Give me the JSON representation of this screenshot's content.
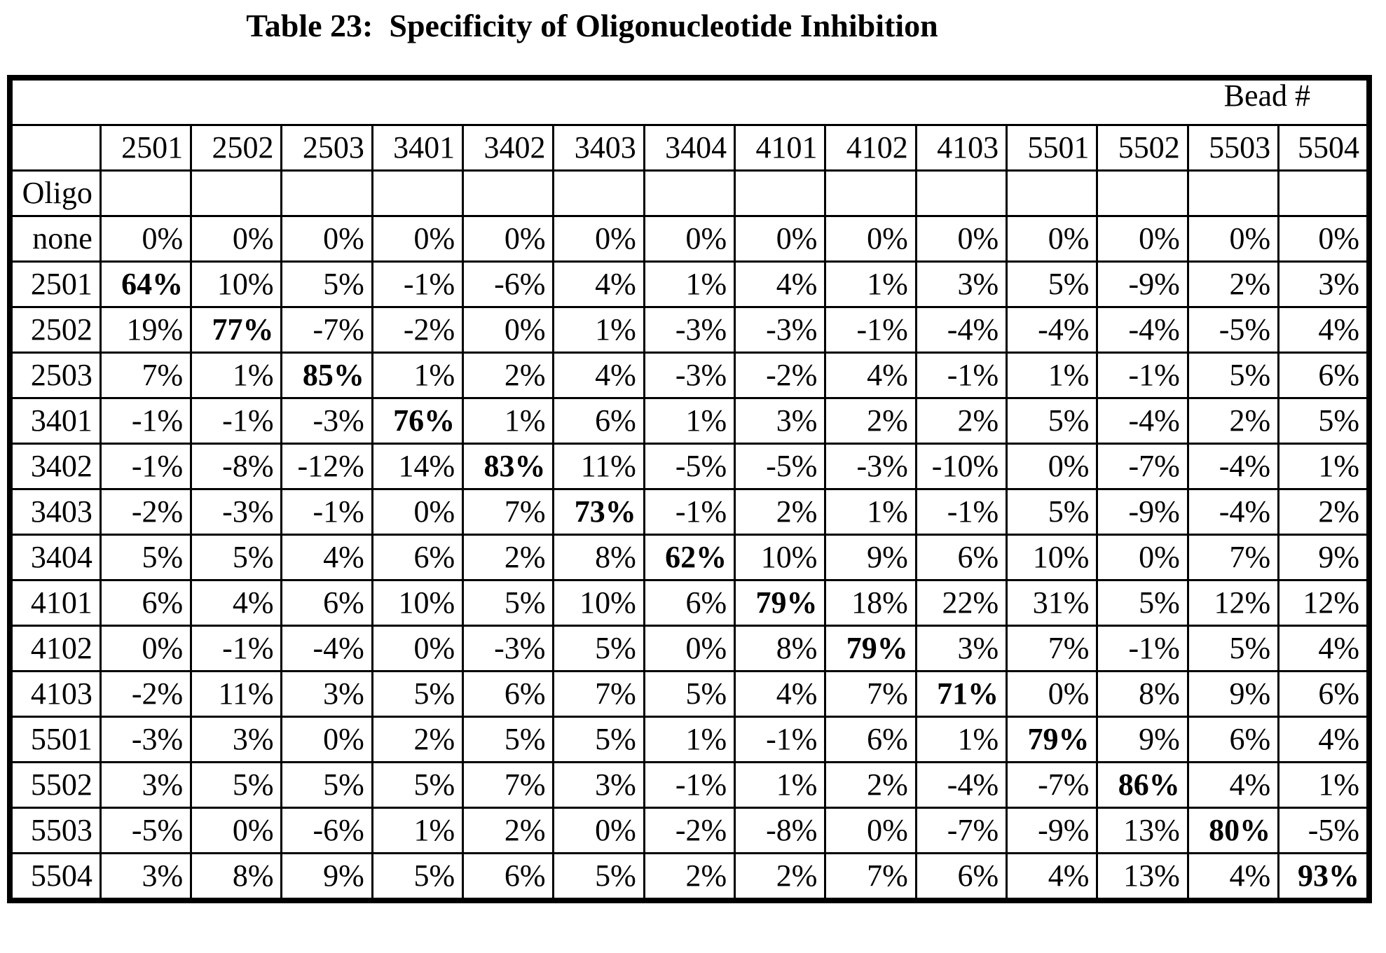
{
  "title": "Table 23:  Specificity of Oligonucleotide Inhibition",
  "table": {
    "group_header": "Bead #",
    "row_label_header": "Oligo",
    "columns": [
      "2501",
      "2502",
      "2503",
      "3401",
      "3402",
      "3403",
      "3404",
      "4101",
      "4102",
      "4103",
      "5501",
      "5502",
      "5503",
      "5504"
    ],
    "rows": [
      {
        "label": "none",
        "values": [
          "0%",
          "0%",
          "0%",
          "0%",
          "0%",
          "0%",
          "0%",
          "0%",
          "0%",
          "0%",
          "0%",
          "0%",
          "0%",
          "0%"
        ]
      },
      {
        "label": "2501",
        "values": [
          "64%",
          "10%",
          "5%",
          "-1%",
          "-6%",
          "4%",
          "1%",
          "4%",
          "1%",
          "3%",
          "5%",
          "-9%",
          "2%",
          "3%"
        ]
      },
      {
        "label": "2502",
        "values": [
          "19%",
          "77%",
          "-7%",
          "-2%",
          "0%",
          "1%",
          "-3%",
          "-3%",
          "-1%",
          "-4%",
          "-4%",
          "-4%",
          "-5%",
          "4%"
        ]
      },
      {
        "label": "2503",
        "values": [
          "7%",
          "1%",
          "85%",
          "1%",
          "2%",
          "4%",
          "-3%",
          "-2%",
          "4%",
          "-1%",
          "1%",
          "-1%",
          "5%",
          "6%"
        ]
      },
      {
        "label": "3401",
        "values": [
          "-1%",
          "-1%",
          "-3%",
          "76%",
          "1%",
          "6%",
          "1%",
          "3%",
          "2%",
          "2%",
          "5%",
          "-4%",
          "2%",
          "5%"
        ]
      },
      {
        "label": "3402",
        "values": [
          "-1%",
          "-8%",
          "-12%",
          "14%",
          "83%",
          "11%",
          "-5%",
          "-5%",
          "-3%",
          "-10%",
          "0%",
          "-7%",
          "-4%",
          "1%"
        ]
      },
      {
        "label": "3403",
        "values": [
          "-2%",
          "-3%",
          "-1%",
          "0%",
          "7%",
          "73%",
          "-1%",
          "2%",
          "1%",
          "-1%",
          "5%",
          "-9%",
          "-4%",
          "2%"
        ]
      },
      {
        "label": "3404",
        "values": [
          "5%",
          "5%",
          "4%",
          "6%",
          "2%",
          "8%",
          "62%",
          "10%",
          "9%",
          "6%",
          "10%",
          "0%",
          "7%",
          "9%"
        ]
      },
      {
        "label": "4101",
        "values": [
          "6%",
          "4%",
          "6%",
          "10%",
          "5%",
          "10%",
          "6%",
          "79%",
          "18%",
          "22%",
          "31%",
          "5%",
          "12%",
          "12%"
        ]
      },
      {
        "label": "4102",
        "values": [
          "0%",
          "-1%",
          "-4%",
          "0%",
          "-3%",
          "5%",
          "0%",
          "8%",
          "79%",
          "3%",
          "7%",
          "-1%",
          "5%",
          "4%"
        ]
      },
      {
        "label": "4103",
        "values": [
          "-2%",
          "11%",
          "3%",
          "5%",
          "6%",
          "7%",
          "5%",
          "4%",
          "7%",
          "71%",
          "0%",
          "8%",
          "9%",
          "6%"
        ]
      },
      {
        "label": "5501",
        "values": [
          "-3%",
          "3%",
          "0%",
          "2%",
          "5%",
          "5%",
          "1%",
          "-1%",
          "6%",
          "1%",
          "79%",
          "9%",
          "6%",
          "4%"
        ]
      },
      {
        "label": "5502",
        "values": [
          "3%",
          "5%",
          "5%",
          "5%",
          "7%",
          "3%",
          "-1%",
          "1%",
          "2%",
          "-4%",
          "-7%",
          "86%",
          "4%",
          "1%"
        ]
      },
      {
        "label": "5503",
        "values": [
          "-5%",
          "0%",
          "-6%",
          "1%",
          "2%",
          "0%",
          "-2%",
          "-8%",
          "0%",
          "-7%",
          "-9%",
          "13%",
          "80%",
          "-5%"
        ]
      },
      {
        "label": "5504",
        "values": [
          "3%",
          "8%",
          "9%",
          "5%",
          "6%",
          "5%",
          "2%",
          "2%",
          "7%",
          "6%",
          "4%",
          "13%",
          "4%",
          "93%"
        ]
      }
    ],
    "blocks": [
      {
        "r0": 1,
        "r1": 3,
        "c0": 0,
        "c1": 2
      },
      {
        "r0": 4,
        "r1": 7,
        "c0": 3,
        "c1": 6
      },
      {
        "r0": 8,
        "r1": 10,
        "c0": 7,
        "c1": 9
      },
      {
        "r0": 11,
        "r1": 14,
        "c0": 10,
        "c1": 13
      }
    ]
  }
}
